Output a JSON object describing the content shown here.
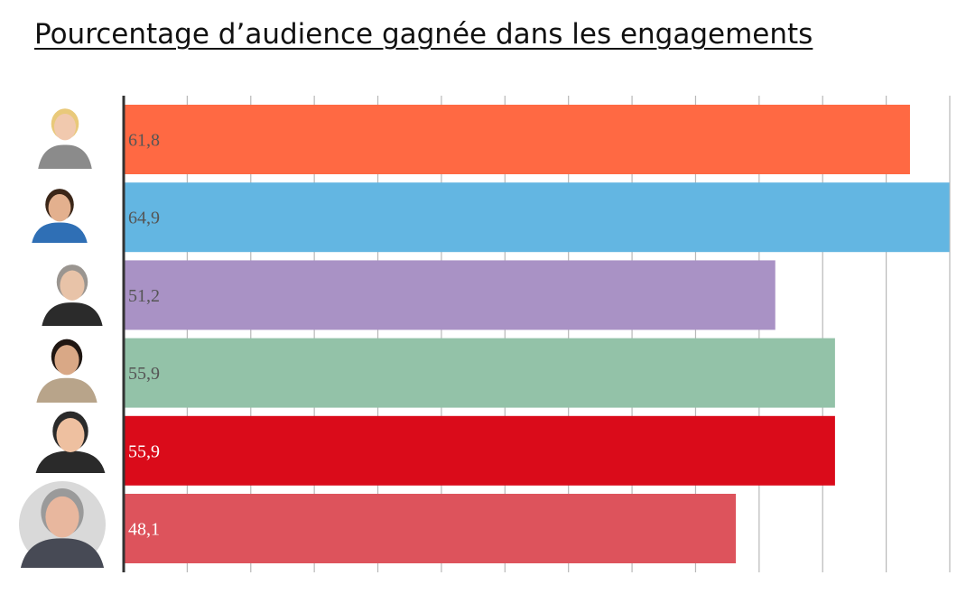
{
  "title": "Pourcentage d’audience gagnée dans les engagements",
  "chart_data": {
    "type": "bar",
    "orientation": "horizontal",
    "title": "Pourcentage d’audience gagnée dans les engagements",
    "xlabel": "",
    "ylabel": "",
    "xlim": [
      0,
      65
    ],
    "grid": true,
    "values": [
      61.8,
      64.9,
      51.2,
      55.9,
      55.9,
      48.1
    ],
    "labels": [
      "61,8",
      "64,9",
      "51,2",
      "55,9",
      "55,9",
      "48,1"
    ],
    "colors": [
      "#FF6943",
      "#63B6E2",
      "#A992C5",
      "#93C2A8",
      "#DA0B1A",
      "#DD535C"
    ],
    "label_colors": [
      "#555555",
      "#555555",
      "#555555",
      "#555555",
      "#ffffff",
      "#ffffff"
    ],
    "row_icons": [
      "portrait-blonde-woman",
      "portrait-dark-hair-woman",
      "portrait-grey-hair-man",
      "portrait-long-hair-woman",
      "portrait-short-hair-man",
      "portrait-older-man-round"
    ]
  }
}
